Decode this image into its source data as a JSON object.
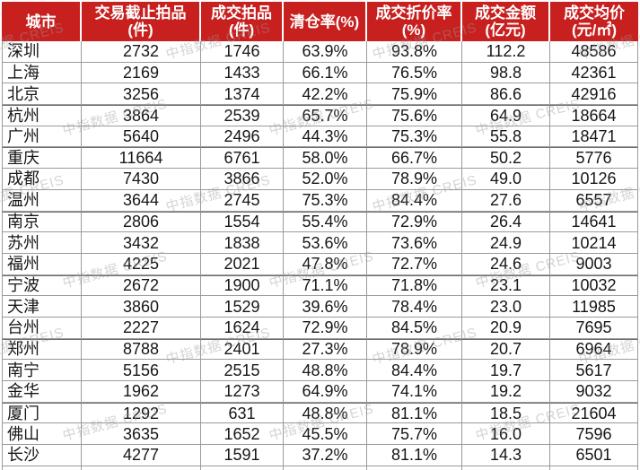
{
  "watermark": {
    "text": "中指数据 CREIS",
    "color": "#9a9a9a"
  },
  "colors": {
    "header_bg": "#c7201f",
    "header_text": "#ffffff",
    "grid_line": "#9a9a9a",
    "grid_line_dark": "#6f6f6f",
    "body_text": "#161616"
  },
  "chart_data": {
    "type": "table",
    "title": "",
    "columns": [
      {
        "title": "城市",
        "unit": ""
      },
      {
        "title": "交易截止拍品",
        "unit": "(件)"
      },
      {
        "title": "成交拍品",
        "unit": "(件)"
      },
      {
        "title": "清仓率(%)",
        "unit": ""
      },
      {
        "title": "成交折价率",
        "unit": "(%)"
      },
      {
        "title": "成交金额",
        "unit": "(亿元)"
      },
      {
        "title": "成交均价",
        "unit": "(元/㎡)"
      }
    ],
    "rows": [
      [
        "深圳",
        "2732",
        "1746",
        "63.9%",
        "93.8%",
        "112.2",
        "48586"
      ],
      [
        "上海",
        "2169",
        "1433",
        "66.1%",
        "76.5%",
        "98.8",
        "42361"
      ],
      [
        "北京",
        "3256",
        "1374",
        "42.2%",
        "75.9%",
        "86.6",
        "42916"
      ],
      [
        "杭州",
        "3864",
        "2539",
        "65.7%",
        "75.6%",
        "64.9",
        "18664"
      ],
      [
        "广州",
        "5640",
        "2496",
        "44.3%",
        "75.3%",
        "55.8",
        "18471"
      ],
      [
        "重庆",
        "11664",
        "6761",
        "58.0%",
        "66.7%",
        "50.2",
        "5776"
      ],
      [
        "成都",
        "7430",
        "3866",
        "52.0%",
        "78.9%",
        "49.0",
        "10126"
      ],
      [
        "温州",
        "3644",
        "2745",
        "75.3%",
        "84.4%",
        "27.6",
        "6557"
      ],
      [
        "南京",
        "2806",
        "1554",
        "55.4%",
        "72.9%",
        "26.4",
        "14641"
      ],
      [
        "苏州",
        "3432",
        "1838",
        "53.6%",
        "73.6%",
        "24.9",
        "10214"
      ],
      [
        "福州",
        "4225",
        "2021",
        "47.8%",
        "72.7%",
        "24.6",
        "9003"
      ],
      [
        "宁波",
        "2672",
        "1900",
        "71.1%",
        "71.8%",
        "23.1",
        "10032"
      ],
      [
        "天津",
        "3860",
        "1529",
        "39.6%",
        "78.4%",
        "23.0",
        "11985"
      ],
      [
        "台州",
        "2227",
        "1624",
        "72.9%",
        "84.5%",
        "20.9",
        "7695"
      ],
      [
        "郑州",
        "8788",
        "2401",
        "27.3%",
        "78.9%",
        "20.7",
        "6964"
      ],
      [
        "南宁",
        "5156",
        "2515",
        "48.8%",
        "84.4%",
        "19.7",
        "5617"
      ],
      [
        "金华",
        "1962",
        "1273",
        "64.9%",
        "74.1%",
        "19.2",
        "9032"
      ],
      [
        "厦门",
        "1292",
        "631",
        "48.8%",
        "81.1%",
        "18.5",
        "21604"
      ],
      [
        "佛山",
        "3635",
        "1652",
        "45.5%",
        "75.7%",
        "16.0",
        "7596"
      ],
      [
        "长沙",
        "4277",
        "1591",
        "37.2%",
        "81.1%",
        "14.3",
        "6501"
      ]
    ]
  }
}
